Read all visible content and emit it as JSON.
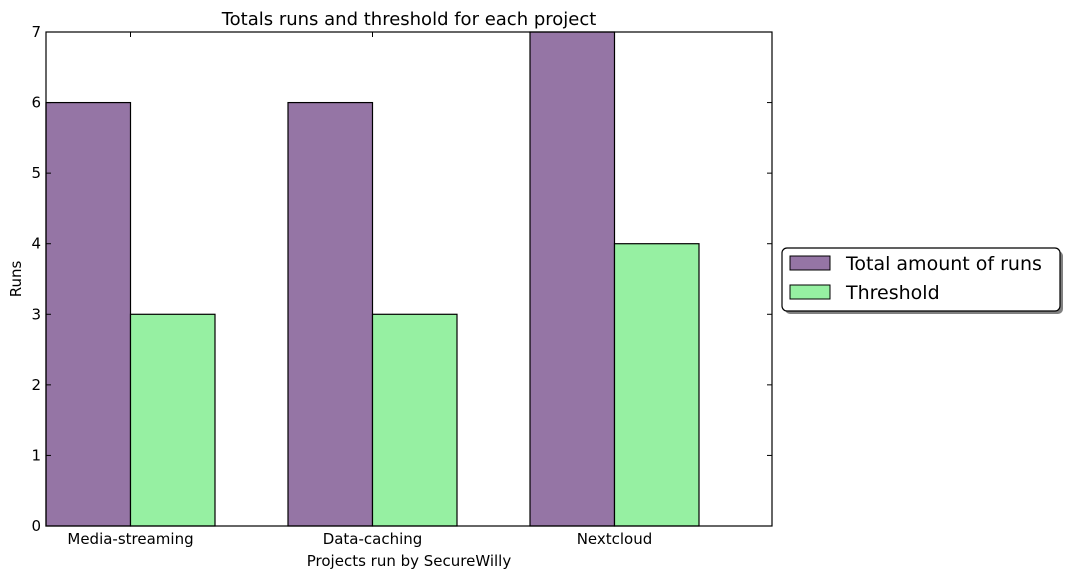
{
  "chart_data": {
    "type": "bar",
    "title": "Totals runs and threshold for each project",
    "xlabel": "Projects run by SecureWilly",
    "ylabel": "Runs",
    "categories": [
      "Media-streaming",
      "Data-caching",
      "Nextcloud"
    ],
    "series": [
      {
        "name": "Total amount of runs",
        "values": [
          6,
          6,
          7
        ],
        "color": "#9575a5"
      },
      {
        "name": "Threshold",
        "values": [
          3,
          3,
          4
        ],
        "color": "#96f0a2"
      }
    ],
    "ylim": [
      0,
      7
    ],
    "yticks": [
      "0",
      "1",
      "2",
      "3",
      "4",
      "5",
      "6",
      "7"
    ],
    "grid": false,
    "legend_position": "right, outside plot"
  }
}
